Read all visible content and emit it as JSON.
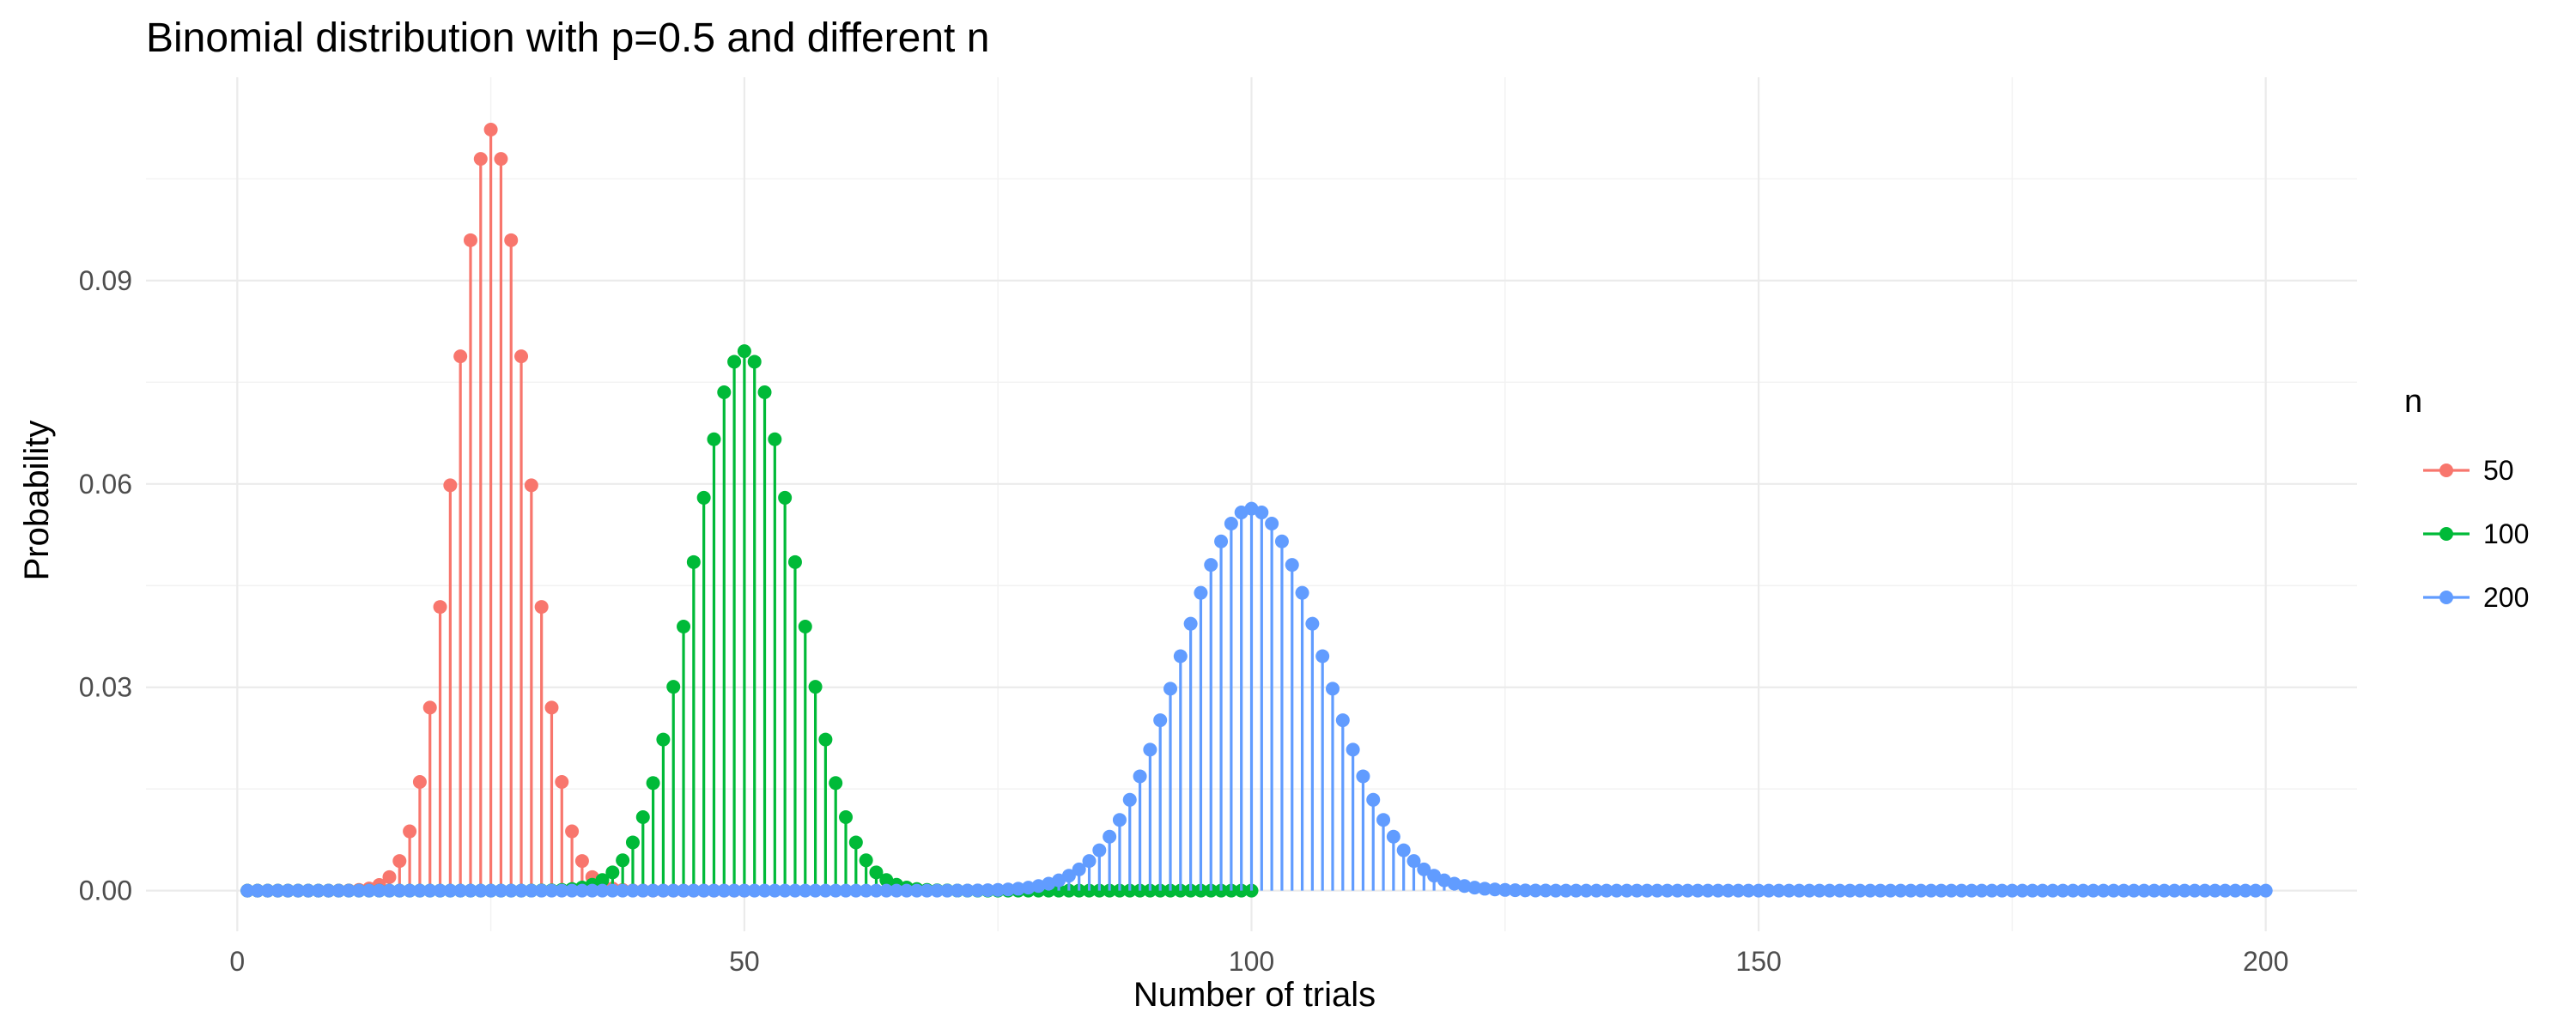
{
  "chart_data": {
    "type": "lollipop",
    "title": "Binomial distribution with p=0.5 and different n",
    "xlabel": "Number of trials",
    "ylabel": "Probability",
    "xlim": [
      -9,
      209
    ],
    "ylim": [
      -0.006,
      0.12
    ],
    "x_ticks": [
      0,
      50,
      100,
      150,
      200
    ],
    "x_tick_labels": [
      "0",
      "50",
      "100",
      "150",
      "200"
    ],
    "y_ticks": [
      0,
      0.03,
      0.06,
      0.09
    ],
    "y_tick_labels": [
      "0.00",
      "0.03",
      "0.06",
      "0.09"
    ],
    "grid": true,
    "legend": {
      "title": "n",
      "position": "right"
    },
    "series": [
      {
        "name": "50",
        "n": 50,
        "p": 0.5,
        "x_range": [
          1,
          50
        ],
        "color": "#F8766D"
      },
      {
        "name": "100",
        "n": 100,
        "p": 0.5,
        "x_range": [
          1,
          100
        ],
        "color": "#00BA38"
      },
      {
        "name": "200",
        "n": 200,
        "p": 0.5,
        "x_range": [
          1,
          200
        ],
        "color": "#619CFF"
      }
    ]
  }
}
